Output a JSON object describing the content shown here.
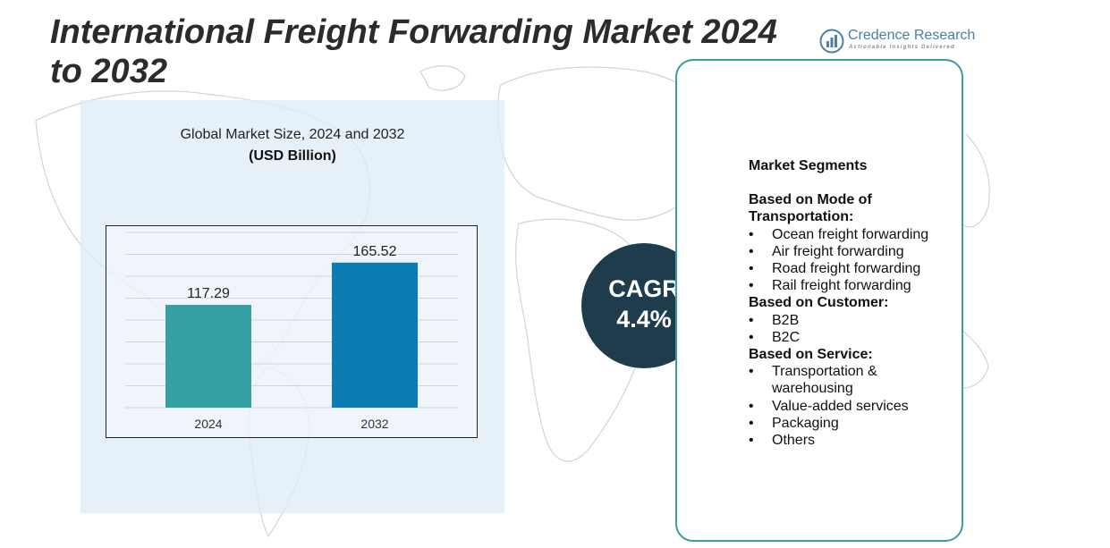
{
  "header": {
    "title": "International Freight Forwarding Market 2024 to 2032"
  },
  "brand": {
    "name": "Credence Research",
    "tagline": "Actionable Insights Delivered",
    "logo_icon": "bar-chart-circle-icon"
  },
  "chart_data": {
    "type": "bar",
    "title": "Global Market Size, 2024 and 2032",
    "subtitle": "(USD Billion)",
    "categories": [
      "2024",
      "2032"
    ],
    "values": [
      117.29,
      165.52
    ],
    "colors": [
      "#34a0a4",
      "#0b7db4"
    ],
    "ylim": [
      0,
      200
    ],
    "grid": true,
    "xlabel": "",
    "ylabel": ""
  },
  "cagr": {
    "label": "CAGR",
    "value": "4.4%"
  },
  "segments": {
    "heading": "Market Segments",
    "groups": [
      {
        "title": "Based on Mode of Transportation:",
        "items": [
          "Ocean freight forwarding",
          "Air freight forwarding",
          "Road freight forwarding",
          "Rail freight forwarding"
        ]
      },
      {
        "title": "Based on Customer:",
        "items": [
          "B2B",
          "B2C"
        ]
      },
      {
        "title": "Based on Service:",
        "items": [
          "Transportation & warehousing",
          "Value-added services",
          "Packaging",
          "Others"
        ]
      }
    ],
    "bullet": "•"
  },
  "colors": {
    "title": "#2b2b2b",
    "panel": "#dfecf6",
    "cagr_circle": "#1e3c4c",
    "card_border": "#3f9aa6",
    "brand": "#4a7fa6"
  }
}
